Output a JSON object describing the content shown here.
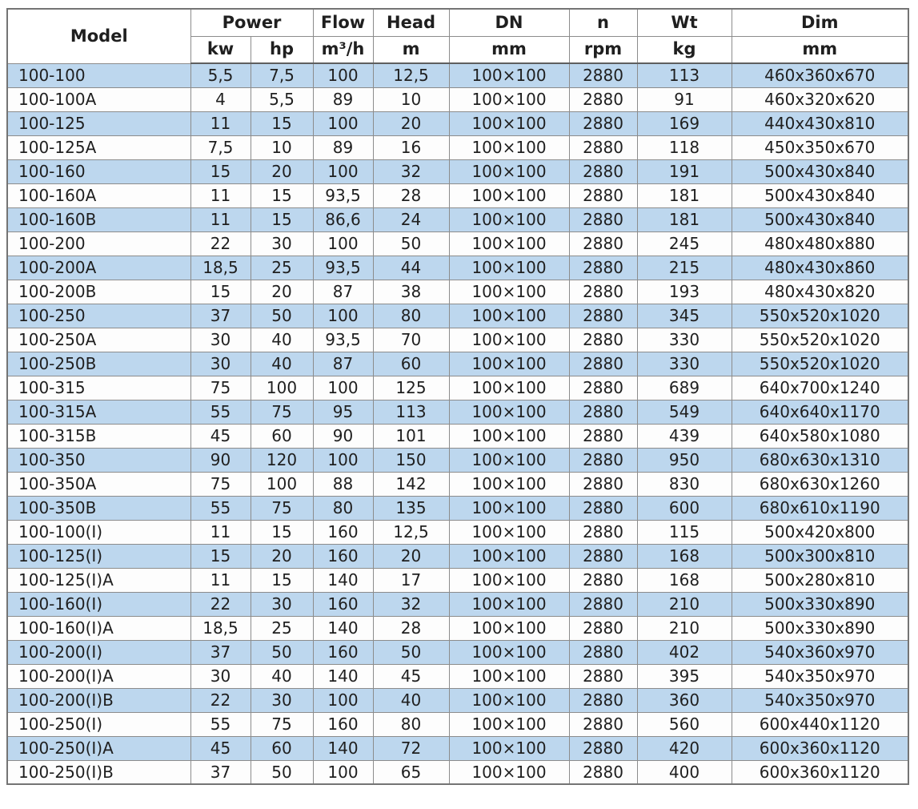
{
  "colors": {
    "stripe": "#bdd7ee",
    "border": "#8c8c8c",
    "outer": "#747474",
    "text": "#1f1f1f"
  },
  "table": {
    "header": {
      "model": "Model",
      "power": "Power",
      "power_kw": "kw",
      "power_hp": "hp",
      "flow": "Flow",
      "flow_unit": "m³/h",
      "head": "Head",
      "head_unit": "m",
      "dn": "DN",
      "dn_unit": "mm",
      "n": "n",
      "n_unit": "rpm",
      "wt": "Wt",
      "wt_unit": "kg",
      "dim": "Dim",
      "dim_unit": "mm"
    },
    "column_keys": [
      "model",
      "power-kw",
      "power-hp",
      "flow-m3h",
      "head-m",
      "dn-mm",
      "n-rpm",
      "wt-kg",
      "dim-mm"
    ],
    "rows": [
      [
        "100-100",
        "5,5",
        "7,5",
        "100",
        "12,5",
        "100×100",
        "2880",
        "113",
        "460x360x670"
      ],
      [
        "100-100A",
        "4",
        "5,5",
        "89",
        "10",
        "100×100",
        "2880",
        "91",
        "460x320x620"
      ],
      [
        "100-125",
        "11",
        "15",
        "100",
        "20",
        "100×100",
        "2880",
        "169",
        "440x430x810"
      ],
      [
        "100-125A",
        "7,5",
        "10",
        "89",
        "16",
        "100×100",
        "2880",
        "118",
        "450x350x670"
      ],
      [
        "100-160",
        "15",
        "20",
        "100",
        "32",
        "100×100",
        "2880",
        "191",
        "500x430x840"
      ],
      [
        "100-160A",
        "11",
        "15",
        "93,5",
        "28",
        "100×100",
        "2880",
        "181",
        "500x430x840"
      ],
      [
        "100-160B",
        "11",
        "15",
        "86,6",
        "24",
        "100×100",
        "2880",
        "181",
        "500x430x840"
      ],
      [
        "100-200",
        "22",
        "30",
        "100",
        "50",
        "100×100",
        "2880",
        "245",
        "480x480x880"
      ],
      [
        "100-200A",
        "18,5",
        "25",
        "93,5",
        "44",
        "100×100",
        "2880",
        "215",
        "480x430x860"
      ],
      [
        "100-200B",
        "15",
        "20",
        "87",
        "38",
        "100×100",
        "2880",
        "193",
        "480x430x820"
      ],
      [
        "100-250",
        "37",
        "50",
        "100",
        "80",
        "100×100",
        "2880",
        "345",
        "550x520x1020"
      ],
      [
        "100-250A",
        "30",
        "40",
        "93,5",
        "70",
        "100×100",
        "2880",
        "330",
        "550x520x1020"
      ],
      [
        "100-250B",
        "30",
        "40",
        "87",
        "60",
        "100×100",
        "2880",
        "330",
        "550x520x1020"
      ],
      [
        "100-315",
        "75",
        "100",
        "100",
        "125",
        "100×100",
        "2880",
        "689",
        "640x700x1240"
      ],
      [
        "100-315A",
        "55",
        "75",
        "95",
        "113",
        "100×100",
        "2880",
        "549",
        "640x640x1170"
      ],
      [
        "100-315B",
        "45",
        "60",
        "90",
        "101",
        "100×100",
        "2880",
        "439",
        "640x580x1080"
      ],
      [
        "100-350",
        "90",
        "120",
        "100",
        "150",
        "100×100",
        "2880",
        "950",
        "680x630x1310"
      ],
      [
        "100-350A",
        "75",
        "100",
        "88",
        "142",
        "100×100",
        "2880",
        "830",
        "680x630x1260"
      ],
      [
        "100-350B",
        "55",
        "75",
        "80",
        "135",
        "100×100",
        "2880",
        "600",
        "680x610x1190"
      ],
      [
        "100-100(I)",
        "11",
        "15",
        "160",
        "12,5",
        "100×100",
        "2880",
        "115",
        "500x420x800"
      ],
      [
        "100-125(I)",
        "15",
        "20",
        "160",
        "20",
        "100×100",
        "2880",
        "168",
        "500x300x810"
      ],
      [
        "100-125(I)A",
        "11",
        "15",
        "140",
        "17",
        "100×100",
        "2880",
        "168",
        "500x280x810"
      ],
      [
        "100-160(I)",
        "22",
        "30",
        "160",
        "32",
        "100×100",
        "2880",
        "210",
        "500x330x890"
      ],
      [
        "100-160(I)A",
        "18,5",
        "25",
        "140",
        "28",
        "100×100",
        "2880",
        "210",
        "500x330x890"
      ],
      [
        "100-200(I)",
        "37",
        "50",
        "160",
        "50",
        "100×100",
        "2880",
        "402",
        "540x360x970"
      ],
      [
        "100-200(I)A",
        "30",
        "40",
        "140",
        "45",
        "100×100",
        "2880",
        "395",
        "540x350x970"
      ],
      [
        "100-200(I)B",
        "22",
        "30",
        "100",
        "40",
        "100×100",
        "2880",
        "360",
        "540x350x970"
      ],
      [
        "100-250(I)",
        "55",
        "75",
        "160",
        "80",
        "100×100",
        "2880",
        "560",
        "600x440x1120"
      ],
      [
        "100-250(I)A",
        "45",
        "60",
        "140",
        "72",
        "100×100",
        "2880",
        "420",
        "600x360x1120"
      ],
      [
        "100-250(I)B",
        "37",
        "50",
        "100",
        "65",
        "100×100",
        "2880",
        "400",
        "600x360x1120"
      ]
    ]
  }
}
